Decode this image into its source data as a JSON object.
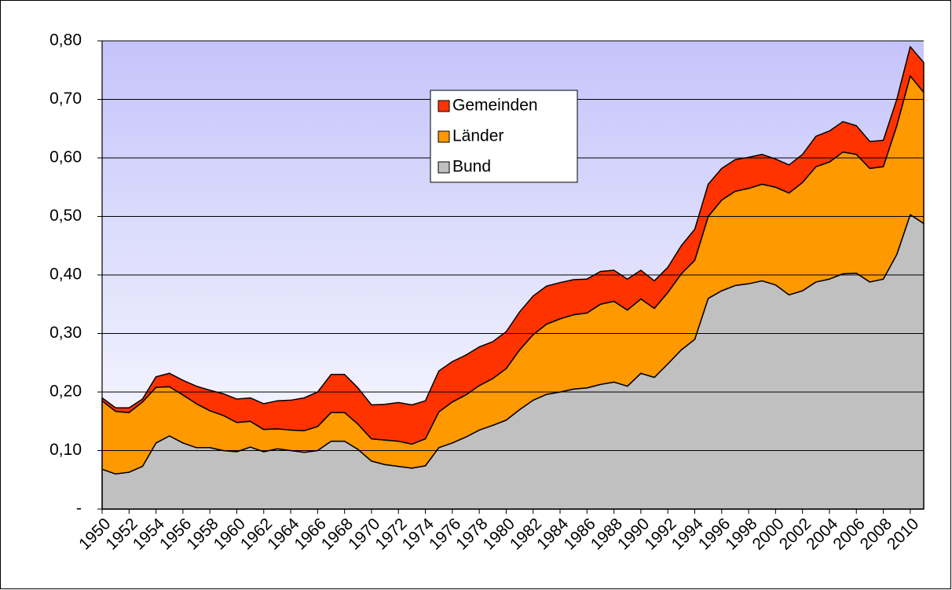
{
  "chart_data": {
    "type": "stacked_area",
    "x": [
      1950,
      1951,
      1952,
      1953,
      1954,
      1955,
      1956,
      1957,
      1958,
      1959,
      1960,
      1961,
      1962,
      1963,
      1964,
      1965,
      1966,
      1967,
      1968,
      1969,
      1970,
      1971,
      1972,
      1973,
      1974,
      1975,
      1976,
      1977,
      1978,
      1979,
      1980,
      1981,
      1982,
      1983,
      1984,
      1985,
      1986,
      1987,
      1988,
      1989,
      1990,
      1991,
      1992,
      1993,
      1994,
      1995,
      1996,
      1997,
      1998,
      1999,
      2000,
      2001,
      2002,
      2003,
      2004,
      2005,
      2006,
      2007,
      2008,
      2009,
      2010,
      2011
    ],
    "xlim": [
      1950,
      2011
    ],
    "xticks": [
      1950,
      1952,
      1954,
      1956,
      1958,
      1960,
      1962,
      1964,
      1966,
      1968,
      1970,
      1972,
      1974,
      1976,
      1978,
      1980,
      1982,
      1984,
      1986,
      1988,
      1990,
      1992,
      1994,
      1996,
      1998,
      2000,
      2002,
      2004,
      2006,
      2008,
      2010
    ],
    "ylim": [
      0,
      0.8
    ],
    "yticks": [
      {
        "value": 0,
        "label": "-"
      },
      {
        "value": 0.1,
        "label": "0,10"
      },
      {
        "value": 0.2,
        "label": "0,20"
      },
      {
        "value": 0.3,
        "label": "0,30"
      },
      {
        "value": 0.4,
        "label": "0,40"
      },
      {
        "value": 0.5,
        "label": "0,50"
      },
      {
        "value": 0.6,
        "label": "0,60"
      },
      {
        "value": 0.7,
        "label": "0,70"
      },
      {
        "value": 0.8,
        "label": "0,80"
      }
    ],
    "grid": true,
    "legend": "upper center",
    "series": [
      {
        "name": "Bund",
        "color": "#c0c0c0",
        "values": [
          0.068,
          0.06,
          0.063,
          0.073,
          0.113,
          0.125,
          0.113,
          0.105,
          0.105,
          0.1,
          0.098,
          0.106,
          0.098,
          0.103,
          0.1,
          0.097,
          0.1,
          0.116,
          0.116,
          0.102,
          0.082,
          0.076,
          0.073,
          0.07,
          0.074,
          0.105,
          0.113,
          0.123,
          0.135,
          0.143,
          0.152,
          0.17,
          0.186,
          0.196,
          0.2,
          0.205,
          0.207,
          0.213,
          0.217,
          0.21,
          0.232,
          0.225,
          0.248,
          0.272,
          0.29,
          0.36,
          0.373,
          0.382,
          0.385,
          0.39,
          0.383,
          0.366,
          0.373,
          0.388,
          0.393,
          0.402,
          0.403,
          0.388,
          0.393,
          0.435,
          0.503,
          0.488
        ]
      },
      {
        "name": "Länder",
        "color": "#ff9900",
        "values": [
          0.117,
          0.107,
          0.102,
          0.11,
          0.095,
          0.084,
          0.082,
          0.075,
          0.063,
          0.06,
          0.05,
          0.044,
          0.038,
          0.034,
          0.035,
          0.037,
          0.041,
          0.049,
          0.049,
          0.043,
          0.038,
          0.042,
          0.043,
          0.041,
          0.046,
          0.061,
          0.07,
          0.072,
          0.076,
          0.08,
          0.088,
          0.102,
          0.112,
          0.12,
          0.125,
          0.127,
          0.128,
          0.137,
          0.138,
          0.13,
          0.127,
          0.118,
          0.122,
          0.13,
          0.135,
          0.14,
          0.155,
          0.161,
          0.163,
          0.165,
          0.167,
          0.174,
          0.185,
          0.197,
          0.2,
          0.208,
          0.203,
          0.194,
          0.192,
          0.22,
          0.237,
          0.224
        ]
      },
      {
        "name": "Gemeinden",
        "color": "#ff3300",
        "values": [
          0.005,
          0.006,
          0.008,
          0.005,
          0.018,
          0.023,
          0.025,
          0.03,
          0.035,
          0.037,
          0.04,
          0.04,
          0.044,
          0.048,
          0.051,
          0.056,
          0.059,
          0.065,
          0.065,
          0.062,
          0.058,
          0.061,
          0.066,
          0.067,
          0.065,
          0.07,
          0.069,
          0.068,
          0.066,
          0.063,
          0.063,
          0.065,
          0.066,
          0.065,
          0.062,
          0.06,
          0.058,
          0.056,
          0.053,
          0.053,
          0.049,
          0.047,
          0.043,
          0.048,
          0.053,
          0.055,
          0.054,
          0.054,
          0.053,
          0.051,
          0.048,
          0.048,
          0.048,
          0.052,
          0.053,
          0.052,
          0.049,
          0.046,
          0.045,
          0.045,
          0.05,
          0.051
        ]
      }
    ]
  }
}
